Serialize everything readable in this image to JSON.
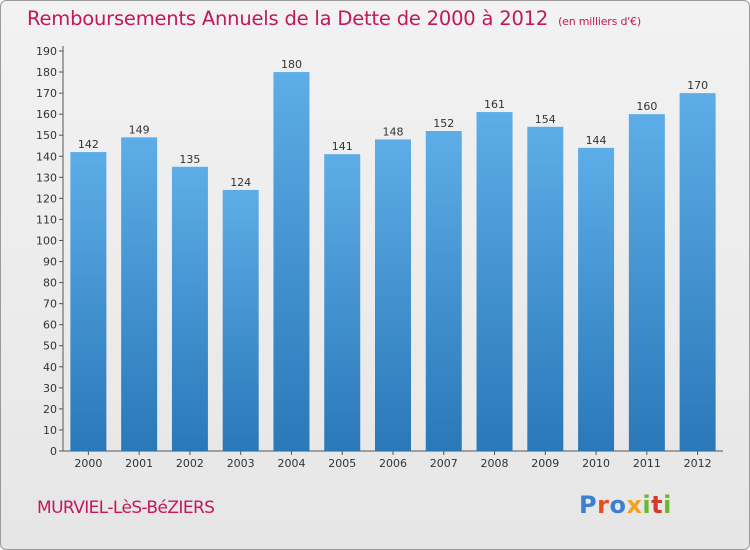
{
  "header": {
    "title": "Remboursements Annuels de la Dette de 2000 à 2012",
    "subtitle": "(en milliers d'€)"
  },
  "footer": {
    "commune": "MURVIEL-LèS-BéZIERS",
    "logo_letters": [
      "P",
      "r",
      "o",
      "x",
      "i",
      "t",
      "i"
    ]
  },
  "colors": {
    "bar_top": "#5dade8",
    "bar_bottom": "#2a78b8",
    "title": "#c2185b",
    "logo": [
      "#3a7fd0",
      "#e8501a",
      "#3a7fd0",
      "#f2a21c",
      "#6ab82e",
      "#d43a2a",
      "#6ab82e"
    ]
  },
  "chart_data": {
    "type": "bar",
    "title": "Remboursements Annuels de la Dette de 2000 à 2012",
    "xlabel": "",
    "ylabel": "",
    "categories": [
      "2000",
      "2001",
      "2002",
      "2003",
      "2004",
      "2005",
      "2006",
      "2007",
      "2008",
      "2009",
      "2010",
      "2011",
      "2012"
    ],
    "values": [
      142,
      149,
      135,
      124,
      180,
      141,
      148,
      152,
      161,
      154,
      144,
      160,
      170
    ],
    "ylim": [
      0,
      190
    ],
    "ytick_step": 10,
    "grid": false
  }
}
